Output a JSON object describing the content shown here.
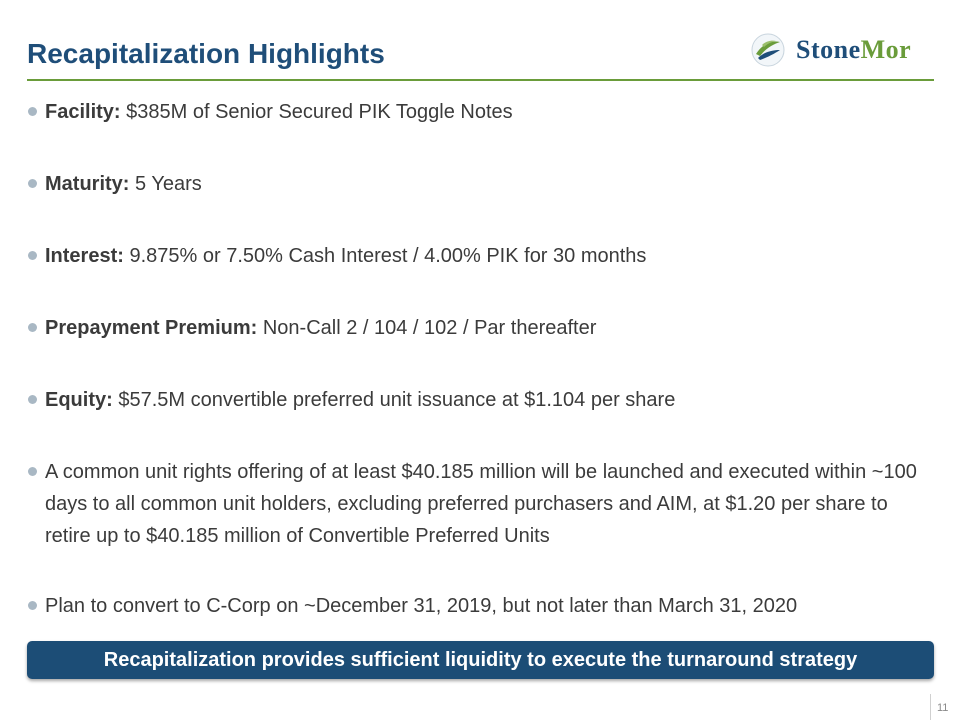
{
  "header": {
    "title": "Recapitalization Highlights"
  },
  "logo": {
    "name_part1": "StoneMor",
    "text_primary": "Stone",
    "text_accent": "Mor",
    "icon": "leaf-orb-icon",
    "primary_color": "#1f4e79",
    "accent_color": "#6a9c3a"
  },
  "bullets": [
    {
      "label": "Facility:",
      "text": " $385M of Senior Secured PIK Toggle Notes"
    },
    {
      "label": "Maturity:",
      "text": " 5 Years"
    },
    {
      "label": "Interest:",
      "text": " 9.875% or 7.50% Cash Interest / 4.00% PIK for 30 months"
    },
    {
      "label": "Prepayment Premium:",
      "text": " Non-Call 2 / 104 / 102 / Par thereafter"
    },
    {
      "label": "Equity:",
      "text": " $57.5M convertible preferred unit issuance at $1.104 per share"
    },
    {
      "label": "",
      "text": "A common unit rights offering of at least $40.185 million will be launched and executed within ~100 days to all common unit holders, excluding preferred purchasers and AIM, at $1.20 per share to retire up to $40.185 million of Convertible Preferred Units"
    },
    {
      "label": "",
      "text": "Plan to convert to C-Corp on ~December 31, 2019, but not later than March 31, 2020"
    }
  ],
  "banner": {
    "text": "Recapitalization provides sufficient liquidity to execute the turnaround strategy"
  },
  "footer": {
    "page_number": "11"
  }
}
